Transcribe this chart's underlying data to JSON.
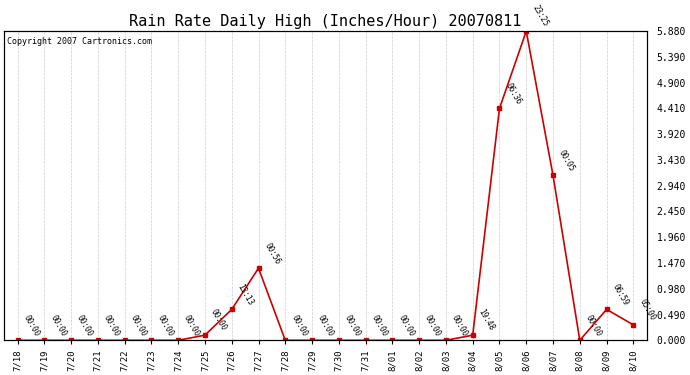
{
  "title": "Rain Rate Daily High (Inches/Hour) 20070811",
  "copyright": "Copyright 2007 Cartronics.com",
  "x_labels": [
    "7/18",
    "7/19",
    "7/20",
    "7/21",
    "7/22",
    "7/23",
    "7/24",
    "7/25",
    "7/26",
    "7/27",
    "7/28",
    "7/29",
    "7/30",
    "7/31",
    "8/01",
    "8/02",
    "8/03",
    "8/04",
    "8/05",
    "8/06",
    "8/07",
    "8/08",
    "8/09",
    "8/10"
  ],
  "time_labels": [
    "00:00",
    "00:00",
    "00:00",
    "00:00",
    "00:00",
    "00:00",
    "00:00",
    "00:00",
    "13:13",
    "00:56",
    "00:00",
    "00:00",
    "00:00",
    "00:00",
    "00:00",
    "00:00",
    "00:00",
    "19:48",
    "06:36",
    "23:25",
    "00:05",
    "00:00",
    "06:59",
    "05:00"
  ],
  "values": [
    0.0,
    0.0,
    0.0,
    0.0,
    0.0,
    0.0,
    0.0,
    0.098,
    0.588,
    1.372,
    0.0,
    0.0,
    0.0,
    0.0,
    0.0,
    0.0,
    0.0,
    0.098,
    4.41,
    5.88,
    3.136,
    0.0,
    0.588,
    0.294
  ],
  "y_ticks": [
    0.0,
    0.49,
    0.98,
    1.47,
    1.96,
    2.45,
    2.94,
    3.43,
    3.92,
    4.41,
    4.9,
    5.39,
    5.88
  ],
  "y_max": 5.88,
  "bg_color": "#ffffff",
  "line_color": "#cc0000",
  "grid_color": "#cccccc",
  "title_fontsize": 11,
  "annot_map": {
    "8": "13:13",
    "9": "00:56",
    "17": "19:48",
    "18": "06:36",
    "19": "23:25",
    "20": "00:05",
    "22": "06:59",
    "23": "05:00"
  }
}
